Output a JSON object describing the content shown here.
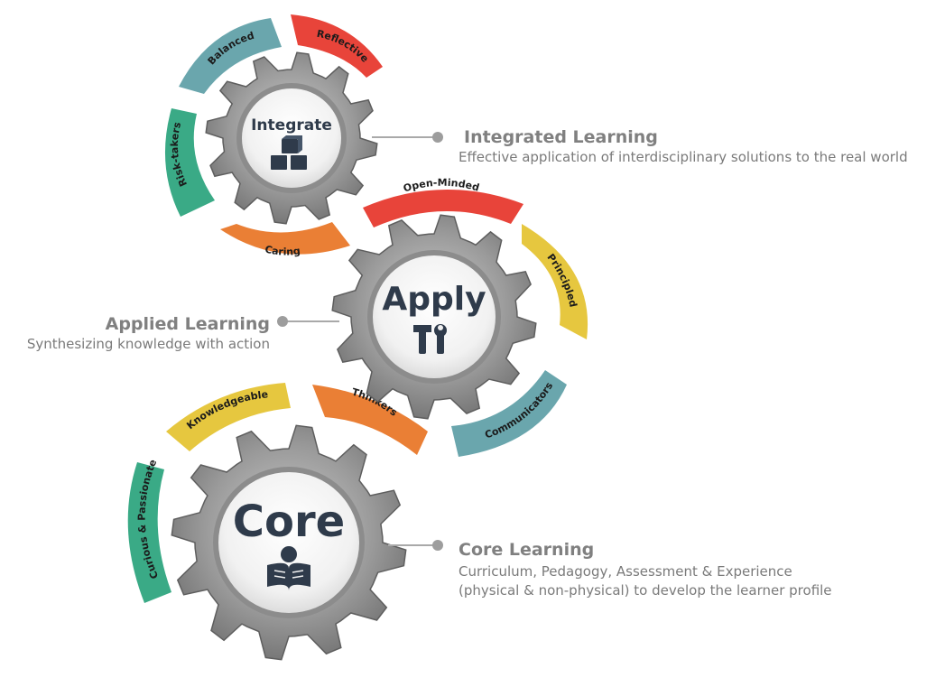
{
  "gears": {
    "integrate": {
      "word": "Integrate",
      "icon": "cubes-icon"
    },
    "apply": {
      "word": "Apply",
      "icon": "tools-icon"
    },
    "core": {
      "word": "Core",
      "icon": "reader-icon"
    }
  },
  "arcs": {
    "balanced": {
      "label": "Balanced",
      "color": "#6aa6ad"
    },
    "reflective": {
      "label": "Reflective",
      "color": "#e8443a"
    },
    "risk_takers": {
      "label": "Risk-takers",
      "color": "#3aaa86"
    },
    "caring": {
      "label": "Caring",
      "color": "#ea7f35"
    },
    "open_minded": {
      "label": "Open-Minded",
      "color": "#e8443a"
    },
    "principled": {
      "label": "Principled",
      "color": "#e6c73f"
    },
    "communicators": {
      "label": "Communicators",
      "color": "#6aa6ad"
    },
    "thinkers": {
      "label": "Thinkers",
      "color": "#ea7f35"
    },
    "knowledgeable": {
      "label": "Knowledgeable",
      "color": "#e6c73f"
    },
    "curious": {
      "label": "Curious & Passionate",
      "color": "#3aaa86"
    }
  },
  "descriptions": {
    "integrated": {
      "title": "Integrated Learning",
      "text": "Effective application of interdisciplinary solutions to the real world"
    },
    "applied": {
      "title": "Applied Learning",
      "text": "Synthesizing knowledge with action"
    },
    "core": {
      "title": "Core Learning",
      "line1": "Curriculum, Pedagogy, Assessment & Experience",
      "line2": "(physical & non-physical) to develop the learner profile"
    }
  }
}
